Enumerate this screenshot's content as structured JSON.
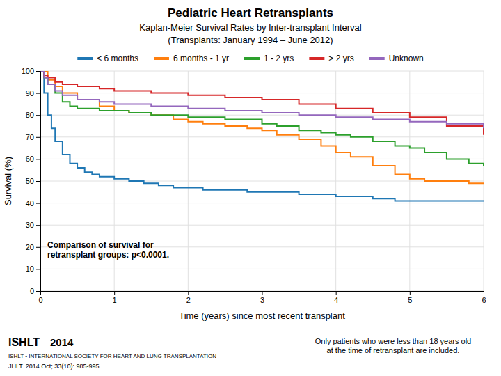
{
  "chart_data": {
    "type": "step",
    "title": "Pediatric Heart Retransplants",
    "subtitle": [
      "Kaplan-Meier Survival Rates by Inter-transplant Interval",
      "(Transplants: January 1994 – June 2012)"
    ],
    "xlabel": "Time (years) since most recent transplant",
    "ylabel": "Survival (%)",
    "xlim": [
      0,
      6
    ],
    "ylim": [
      0,
      100
    ],
    "xticks": [
      0,
      1,
      2,
      3,
      4,
      5,
      6
    ],
    "yticks": [
      0,
      10,
      20,
      30,
      40,
      50,
      60,
      70,
      80,
      90,
      100
    ],
    "grid": true,
    "legend": "top",
    "series": [
      {
        "name": "< 6 months",
        "x": [
          0,
          0.05,
          0.1,
          0.15,
          0.2,
          0.3,
          0.4,
          0.5,
          0.6,
          0.7,
          0.8,
          1.0,
          1.2,
          1.4,
          1.6,
          1.8,
          2.0,
          2.2,
          2.5,
          2.8,
          3.0,
          3.2,
          3.5,
          3.8,
          4.0,
          4.2,
          4.5,
          4.8,
          5.0,
          5.2,
          5.5,
          5.8,
          6.0
        ],
        "values": [
          100,
          90,
          80,
          74,
          68,
          62,
          58,
          56,
          54,
          53,
          52,
          51,
          50,
          49,
          48,
          47,
          47,
          46,
          46,
          45,
          45,
          45,
          44,
          44,
          43,
          43,
          42,
          41,
          41,
          41,
          41,
          41,
          41
        ]
      },
      {
        "name": "6 months - 1 yr",
        "x": [
          0,
          0.1,
          0.2,
          0.3,
          0.5,
          0.8,
          1.0,
          1.2,
          1.5,
          1.8,
          2.0,
          2.2,
          2.5,
          2.8,
          3.0,
          3.2,
          3.5,
          3.8,
          4.0,
          4.2,
          4.5,
          4.8,
          5.0,
          5.2,
          5.5,
          5.8,
          6.0
        ],
        "values": [
          100,
          96,
          93,
          90,
          87,
          84,
          82,
          81,
          80,
          78,
          77,
          76,
          75,
          74,
          73,
          71,
          69,
          66,
          63,
          61,
          57,
          53,
          51,
          50,
          50,
          49,
          49
        ]
      },
      {
        "name": "1 - 2 yrs",
        "x": [
          0,
          0.05,
          0.1,
          0.2,
          0.3,
          0.4,
          0.5,
          0.8,
          1.0,
          1.2,
          1.5,
          1.8,
          2.0,
          2.5,
          3.0,
          3.2,
          3.5,
          3.8,
          4.0,
          4.2,
          4.5,
          4.8,
          5.0,
          5.2,
          5.5,
          5.8,
          6.0
        ],
        "values": [
          100,
          97,
          94,
          90,
          86,
          84,
          83,
          82,
          82,
          81,
          80,
          80,
          79,
          78,
          76,
          75,
          73,
          72,
          71,
          70,
          68,
          66,
          65,
          63,
          60,
          58,
          57
        ]
      },
      {
        "name": "> 2 yrs",
        "x": [
          0,
          0.05,
          0.1,
          0.2,
          0.3,
          0.5,
          0.8,
          1.0,
          1.5,
          2.0,
          2.5,
          3.0,
          3.5,
          4.0,
          4.5,
          5.0,
          5.5,
          6.0
        ],
        "values": [
          100,
          98,
          97,
          95,
          94,
          93,
          92,
          91,
          90,
          89,
          88,
          87,
          85,
          83,
          81,
          79,
          75,
          71
        ]
      },
      {
        "name": "Unknown",
        "x": [
          0,
          0.05,
          0.1,
          0.2,
          0.3,
          0.5,
          0.8,
          1.0,
          1.5,
          2.0,
          2.5,
          3.0,
          3.5,
          4.0,
          4.5,
          5.0,
          5.5,
          6.0
        ],
        "values": [
          100,
          97,
          94,
          91,
          89,
          87,
          86,
          85,
          84,
          83,
          82,
          81,
          80,
          79,
          78,
          77,
          76,
          74
        ]
      }
    ],
    "annotations": [
      "Comparison of survival for\nretransplant groups: p<0.0001.",
      "Only patients who were less than 18 years old\nat the time of retransplant are included.",
      "ISHLT",
      "2014",
      "ISHLT • INTERNATIONAL SOCIETY FOR HEART AND LUNG TRANSPLANTATION",
      "JHLT. 2014 Oct; 33(10): 985-995"
    ]
  }
}
